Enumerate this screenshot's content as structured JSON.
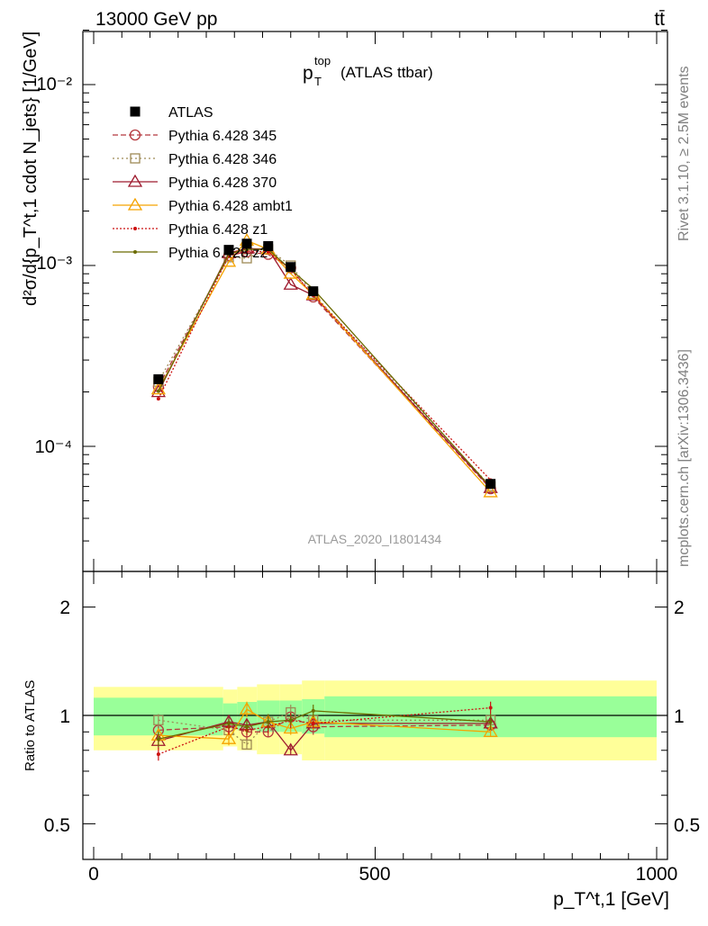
{
  "chart_data": {
    "type": "line",
    "header_left": "13000 GeV pp",
    "header_right": "tt̄",
    "title_main": "p",
    "title_sup": "top",
    "title_sub": "T",
    "title_rest": "(ATLAS ttbar)",
    "analysis_label": "ATLAS_2020_I1801434",
    "side_label_top": "Rivet 3.1.10, ≥ 2.5M events",
    "side_label_bottom": "mcplots.cern.ch [arXiv:1306.3436]",
    "ylabel_main": "d²σ/d{p_T^t,1 cdot N_jets} [1/GeV]",
    "ylabel_ratio": "Ratio to ATLAS",
    "xlabel": "p_T^t,1 [GeV]",
    "x_ticks": [
      "0",
      "500",
      "1000"
    ],
    "main_y_ticks": [
      "10⁻⁴",
      "10⁻³",
      "10⁻²"
    ],
    "ratio_y_ticks": [
      "0.5",
      "1",
      "2"
    ],
    "xlim": [
      -25,
      1025
    ],
    "ylim_main": [
      2.55e-05,
      0.0205
    ],
    "ylim_ratio": [
      0.4,
      2.5
    ],
    "ylog": true,
    "x": [
      115,
      240,
      272,
      310,
      350,
      390,
      705
    ],
    "xbins": [
      [
        0,
        230
      ],
      [
        230,
        255
      ],
      [
        255,
        290
      ],
      [
        290,
        330
      ],
      [
        330,
        370
      ],
      [
        370,
        410
      ],
      [
        410,
        1000
      ]
    ],
    "atlas_values": [
      0.000235,
      0.00122,
      0.00132,
      0.00128,
      0.00098,
      0.00072,
      6.2e-05
    ],
    "band_inner": [
      0.12,
      0.08,
      0.09,
      0.1,
      0.1,
      0.11,
      0.13
    ],
    "band_outer": [
      0.2,
      0.18,
      0.2,
      0.22,
      0.22,
      0.25,
      0.25
    ],
    "series": [
      {
        "name": "Pythia 6.428 345",
        "color": "#b5383d",
        "marker": "circle",
        "dash": "6,3",
        "ratios": [
          0.91,
          0.93,
          0.9,
          0.9,
          0.99,
          0.93,
          0.94
        ]
      },
      {
        "name": "Pythia 6.428 346",
        "color": "#9e8a56",
        "marker": "square",
        "dash": "2,3",
        "ratios": [
          0.97,
          0.91,
          0.83,
          0.96,
          1.02,
          0.97,
          0.97
        ]
      },
      {
        "name": "Pythia 6.428 370",
        "color": "#9e1a2e",
        "marker": "triangle",
        "dash": "",
        "ratios": [
          0.85,
          0.96,
          0.94,
          0.96,
          0.8,
          0.95,
          0.95
        ]
      },
      {
        "name": "Pythia 6.428 ambt1",
        "color": "#f5a300",
        "marker": "triangle",
        "dash": "",
        "ratios": [
          0.88,
          0.86,
          1.04,
          0.96,
          0.92,
          0.96,
          0.9
        ]
      },
      {
        "name": "Pythia 6.428 z1",
        "color": "#cc1111",
        "marker": "dot",
        "dash": "2,2",
        "ratios": [
          0.78,
          0.93,
          0.91,
          0.93,
          0.97,
          0.95,
          1.05
        ]
      },
      {
        "name": "Pythia 6.428 z2",
        "color": "#6b6b00",
        "marker": "dot",
        "dash": "",
        "ratios": [
          0.86,
          0.95,
          0.93,
          0.96,
          0.97,
          1.03,
          0.96
        ]
      }
    ],
    "legend": {
      "placement": "top-left",
      "atlas_label": "ATLAS"
    },
    "grid": false
  }
}
